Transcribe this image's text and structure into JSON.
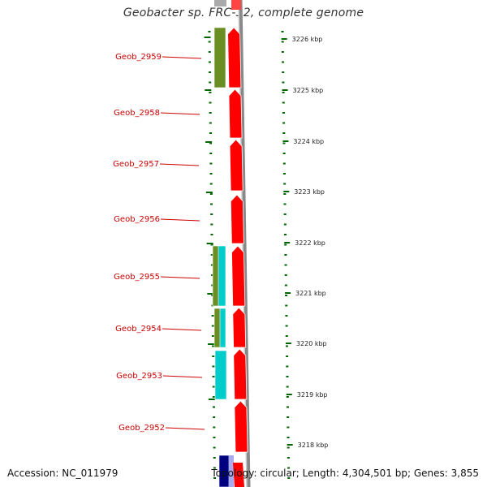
{
  "title": "Geobacter sp. FRC-32, complete genome",
  "accession_text": "Accession: NC_011979",
  "topology_text": "Topology: circular; Length: 4,304,501 bp; Genes: 3,855",
  "colors": {
    "gene_forward": "#ff0000",
    "feature_olive": "#6b8e23",
    "feature_cyan": "#00cccc",
    "feature_navy": "#000080",
    "label_red": "#cc0000",
    "tick_green": "#006400",
    "backbone_gray": "#888888"
  },
  "genes": [
    {
      "name": "Geob_2959",
      "label": "Geob_2959"
    },
    {
      "name": "Geob_2958",
      "label": "Geob_2958"
    },
    {
      "name": "Geob_2957",
      "label": "Geob_2957"
    },
    {
      "name": "Geob_2956",
      "label": "Geob_2956"
    },
    {
      "name": "Geob_2955",
      "label": "Geob_2955"
    },
    {
      "name": "Geob_2954",
      "label": "Geob_2954"
    },
    {
      "name": "Geob_2953",
      "label": "Geob_2953"
    },
    {
      "name": "Geob_2952",
      "label": "Geob_2952"
    }
  ],
  "scale_labels": [
    "3226 kbp",
    "3225 kbp",
    "3224 kbp",
    "3223 kbp",
    "3222 kbp",
    "3221 kbp",
    "3220 kbp",
    "3219 kbp",
    "3218 kbp"
  ]
}
